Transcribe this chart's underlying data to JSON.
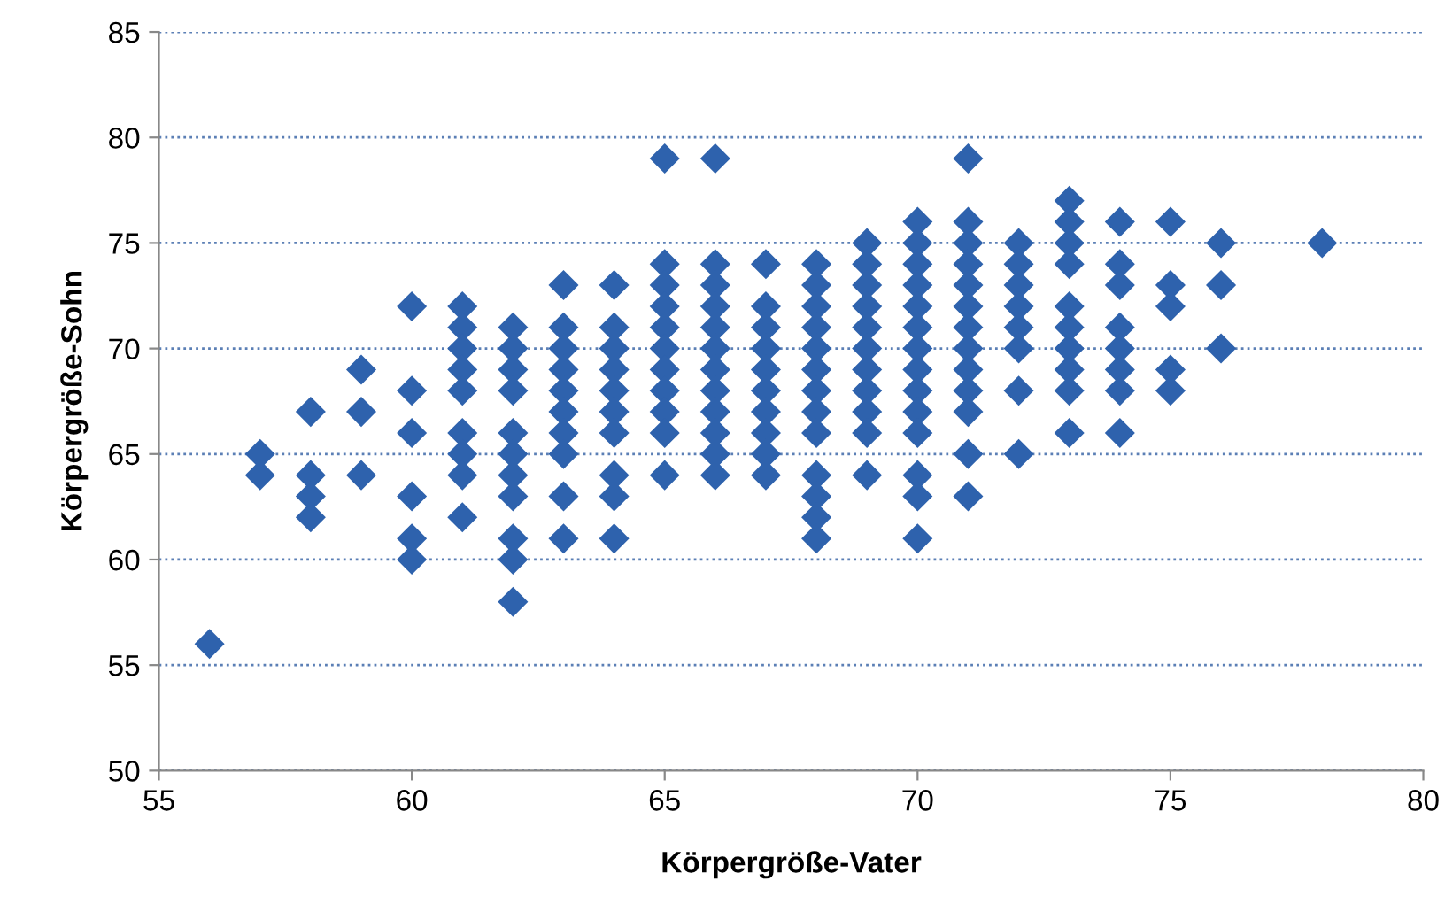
{
  "chart_data": {
    "type": "scatter",
    "xlabel": "Körpergröße-Vater",
    "ylabel": "Körpergröße-Sohn",
    "xlim": [
      55,
      80
    ],
    "xticks": [
      55,
      60,
      65,
      70,
      75,
      80
    ],
    "ylim": [
      50,
      85
    ],
    "yticks": [
      50,
      55,
      60,
      65,
      70,
      75,
      80,
      85
    ],
    "grid": "y",
    "marker": "diamond",
    "series": [
      {
        "color": "#2e62ad",
        "x": [
          56,
          57,
          57,
          58,
          58,
          58,
          58,
          59,
          59,
          59,
          60,
          60,
          60,
          60,
          60,
          60,
          61,
          61,
          61,
          61,
          61,
          61,
          61,
          61,
          61,
          62,
          62,
          62,
          62,
          62,
          62,
          62,
          62,
          62,
          62,
          62,
          63,
          63,
          63,
          63,
          63,
          63,
          63,
          63,
          63,
          63,
          64,
          64,
          64,
          64,
          64,
          64,
          64,
          64,
          64,
          64,
          65,
          65,
          65,
          65,
          65,
          65,
          65,
          65,
          65,
          65,
          65,
          66,
          66,
          66,
          66,
          66,
          66,
          66,
          66,
          66,
          66,
          66,
          66,
          67,
          67,
          67,
          67,
          67,
          67,
          67,
          67,
          67,
          67,
          68,
          68,
          68,
          68,
          68,
          68,
          68,
          68,
          68,
          68,
          68,
          68,
          68,
          69,
          69,
          69,
          69,
          69,
          69,
          69,
          69,
          69,
          69,
          69,
          70,
          70,
          70,
          70,
          70,
          70,
          70,
          70,
          70,
          70,
          70,
          70,
          70,
          70,
          71,
          71,
          71,
          71,
          71,
          71,
          71,
          71,
          71,
          71,
          71,
          71,
          71,
          72,
          72,
          72,
          72,
          72,
          72,
          72,
          72,
          73,
          73,
          73,
          73,
          73,
          73,
          73,
          73,
          73,
          73,
          74,
          74,
          74,
          74,
          74,
          74,
          74,
          74,
          75,
          75,
          75,
          75,
          75,
          76,
          76,
          76,
          78
        ],
        "values": [
          56,
          65,
          64,
          67,
          64,
          63,
          62,
          69,
          67,
          64,
          72,
          68,
          66,
          63,
          61,
          60,
          72,
          71,
          70,
          69,
          68,
          66,
          65,
          64,
          62,
          71,
          70,
          69,
          68,
          66,
          65,
          64,
          63,
          61,
          60,
          58,
          73,
          71,
          70,
          69,
          68,
          67,
          66,
          65,
          63,
          61,
          73,
          71,
          70,
          69,
          68,
          67,
          66,
          64,
          63,
          61,
          79,
          74,
          73,
          72,
          71,
          70,
          69,
          68,
          67,
          66,
          64,
          79,
          74,
          73,
          72,
          71,
          70,
          69,
          68,
          67,
          66,
          65,
          64,
          74,
          72,
          71,
          70,
          69,
          68,
          67,
          66,
          65,
          64,
          74,
          73,
          72,
          71,
          70,
          69,
          68,
          67,
          66,
          64,
          63,
          62,
          61,
          75,
          74,
          73,
          72,
          71,
          70,
          69,
          68,
          67,
          66,
          64,
          76,
          75,
          74,
          73,
          72,
          71,
          70,
          69,
          68,
          67,
          66,
          64,
          63,
          61,
          79,
          76,
          75,
          74,
          73,
          72,
          71,
          70,
          69,
          68,
          67,
          65,
          63,
          75,
          74,
          73,
          72,
          71,
          70,
          68,
          65,
          77,
          76,
          75,
          74,
          72,
          71,
          70,
          69,
          68,
          66,
          76,
          74,
          73,
          71,
          70,
          69,
          68,
          66,
          76,
          73,
          72,
          69,
          68,
          75,
          73,
          70,
          75
        ]
      }
    ]
  }
}
